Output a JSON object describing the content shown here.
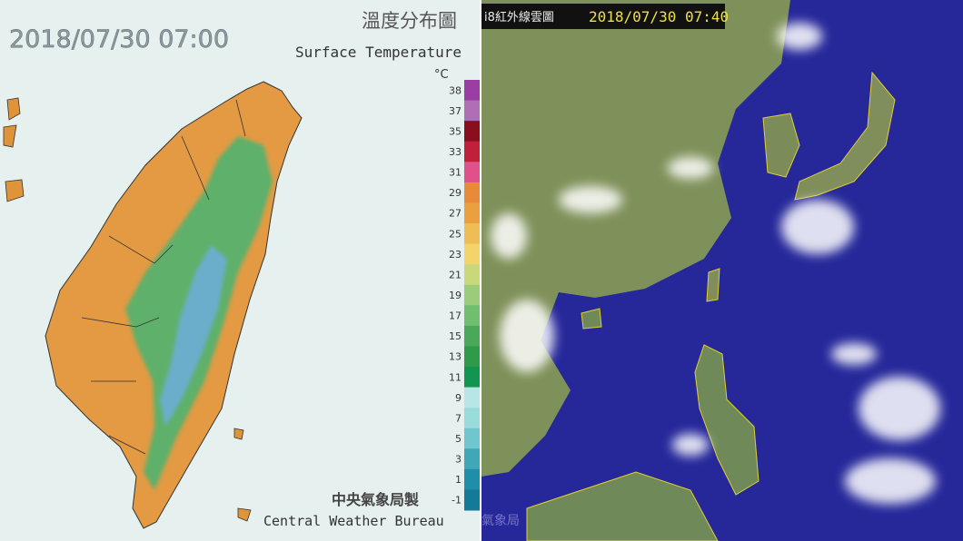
{
  "left_panel": {
    "timestamp": "2018/07/30 07:00",
    "title_zh": "溫度分布圖",
    "title_en": "Surface Temperature",
    "unit": "°C",
    "scale_labels": [
      38,
      37,
      35,
      33,
      31,
      29,
      27,
      25,
      23,
      21,
      19,
      17,
      15,
      13,
      11,
      9,
      7,
      5,
      3,
      1,
      -1
    ],
    "credit_zh": "中央氣象局製",
    "credit_en": "Central Weather Bureau"
  },
  "right_panel": {
    "title": "i8紅外線雲圖",
    "timestamp": "2018/07/30 07:40",
    "watermark": "氣象局"
  }
}
